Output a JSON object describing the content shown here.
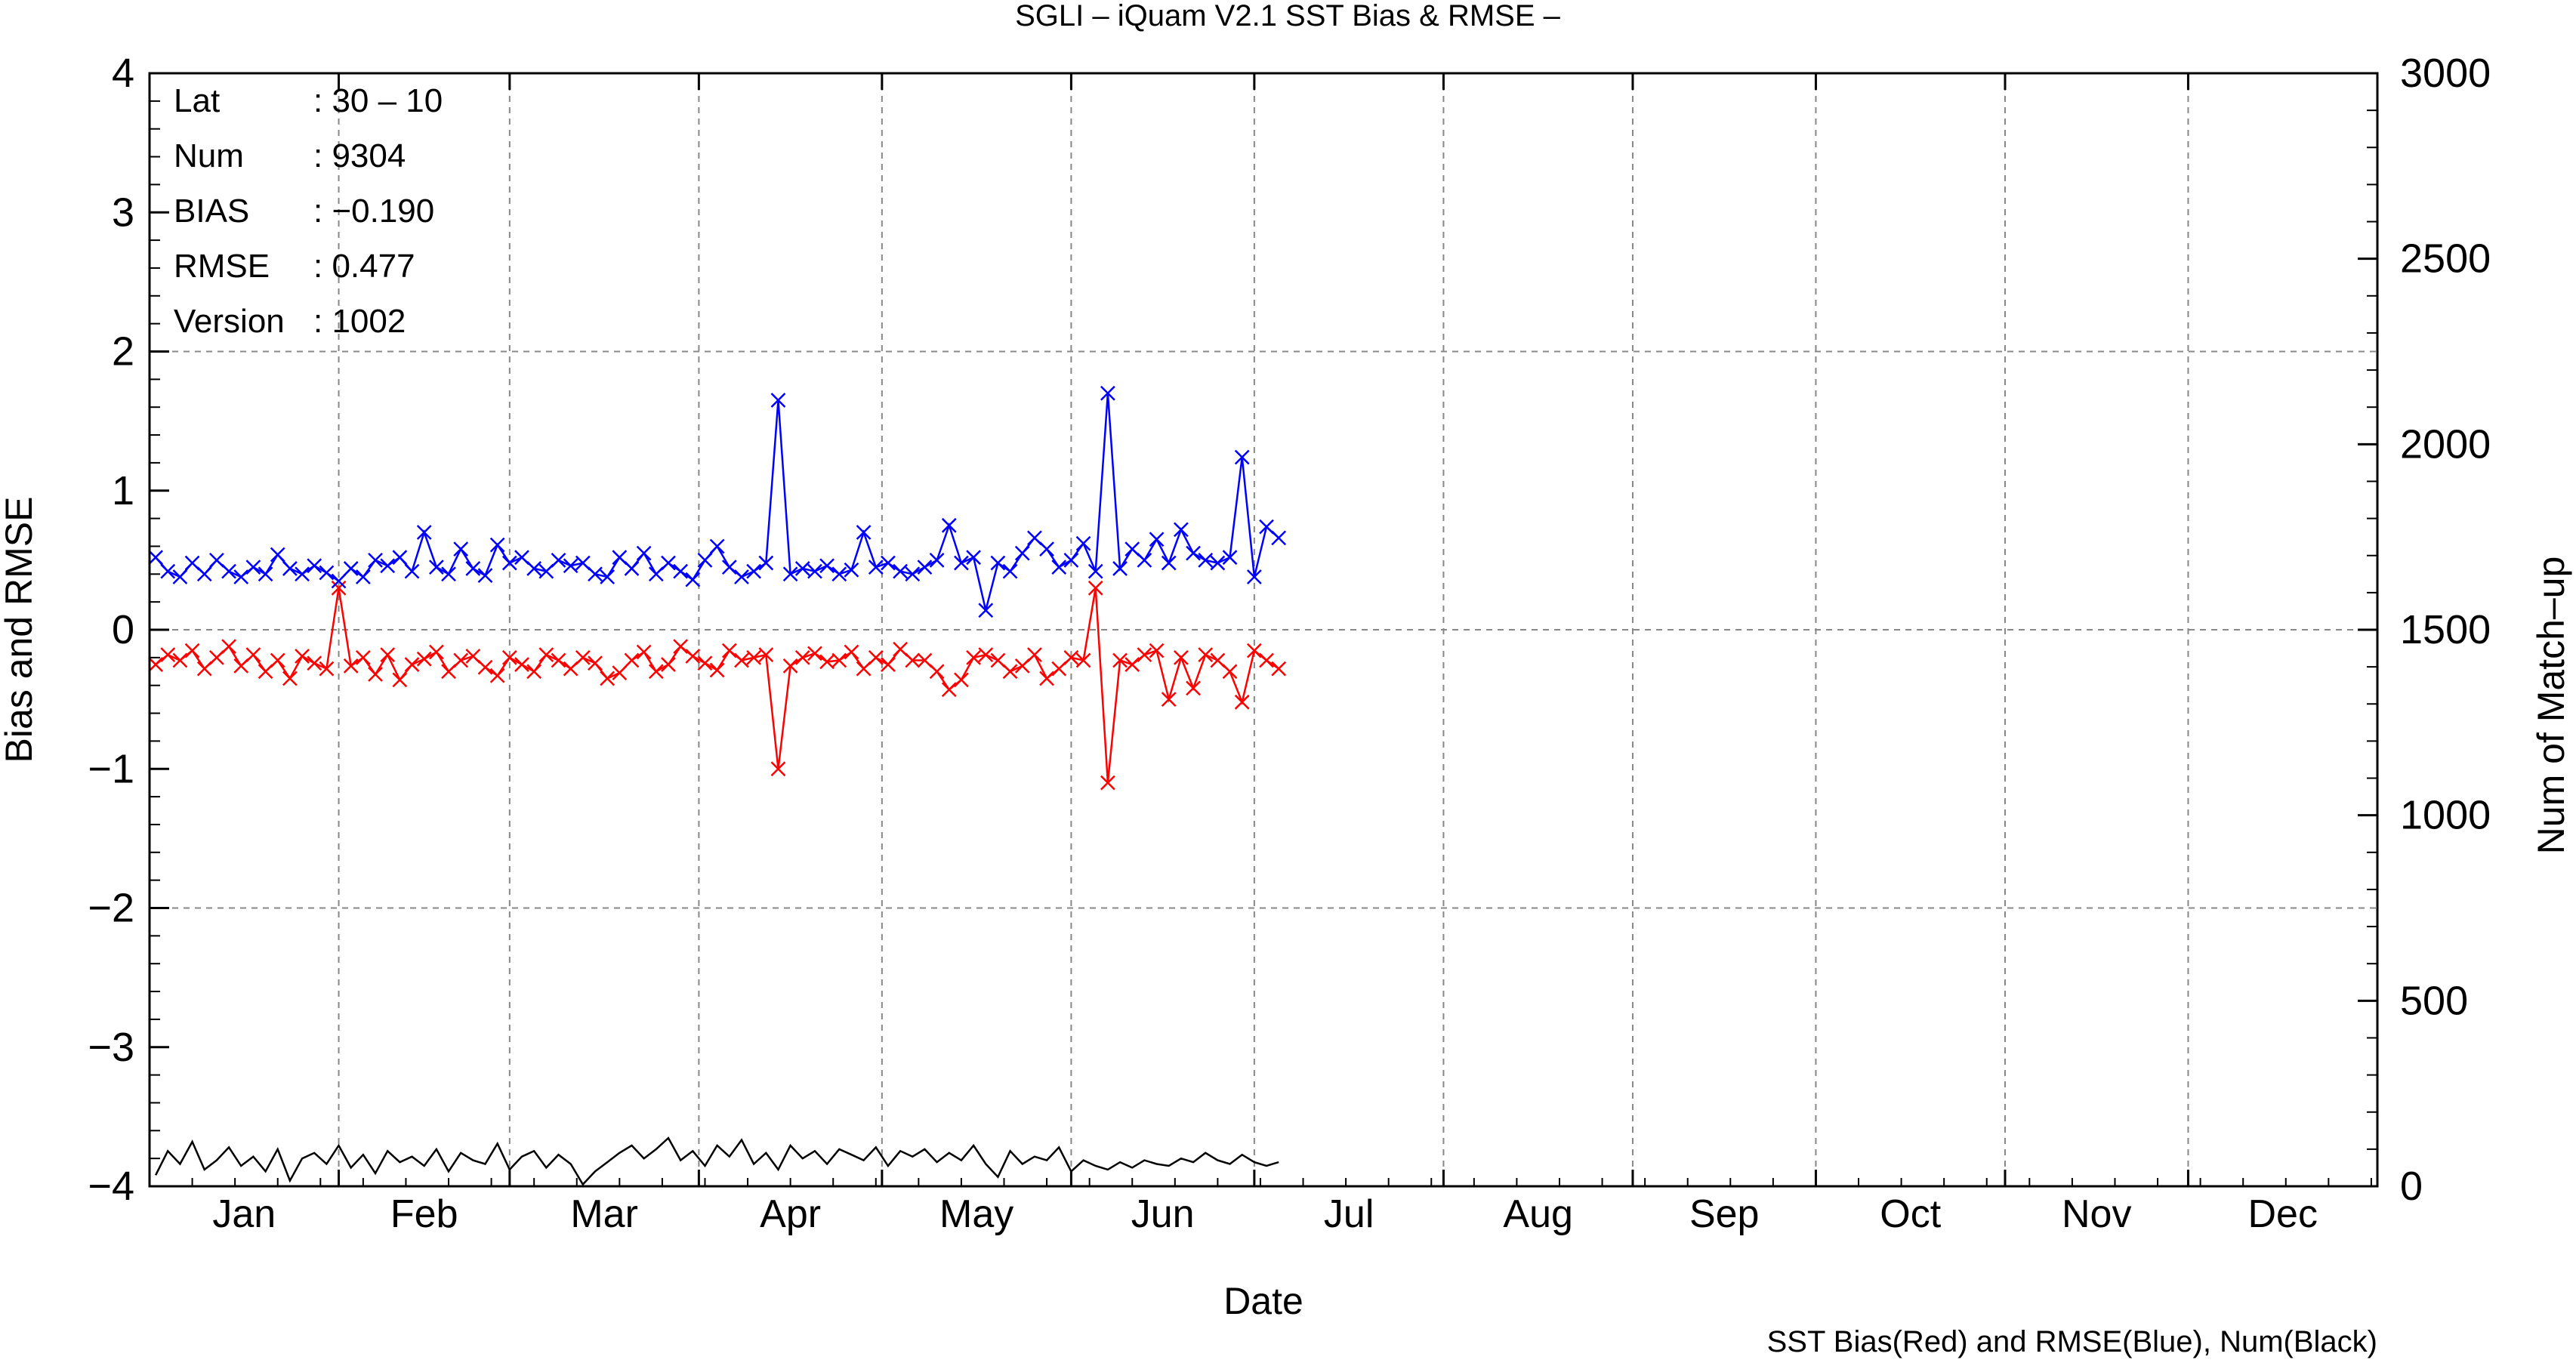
{
  "chart_data": {
    "type": "line",
    "title": "SGLI – iQuam V2.1 SST Bias & RMSE  –",
    "xlabel": "Date",
    "ylabel": "Bias and RMSE",
    "y2label": "Num of Match–up",
    "footer": "SST Bias(Red) and RMSE(Blue), Num(Black)",
    "xlim": [
      0,
      365
    ],
    "ylim": [
      -4,
      4
    ],
    "y2lim": [
      0,
      3000
    ],
    "grid": true,
    "month_labels": [
      "Jan",
      "Feb",
      "Mar",
      "Apr",
      "May",
      "Jun",
      "Jul",
      "Aug",
      "Sep",
      "Oct",
      "Nov",
      "Dec"
    ],
    "yticks": [
      "−4",
      "−3",
      "−2",
      "−1",
      "0",
      "1",
      "2",
      "3",
      "4"
    ],
    "y2ticks": [
      "0",
      "500",
      "1000",
      "1500",
      "2000",
      "2500",
      "3000"
    ],
    "colors": {
      "bias": "#ff0000",
      "rmse": "#0000ff",
      "num": "#000000",
      "grid": "#888888"
    },
    "info": [
      {
        "key": "Lat",
        "value": ": 30 – 10"
      },
      {
        "key": "Num",
        "value": ": 9304"
      },
      {
        "key": "BIAS",
        "value": ": −0.190"
      },
      {
        "key": "RMSE",
        "value": ": 0.477"
      },
      {
        "key": "Version",
        "value": ": 1002"
      }
    ],
    "series": [
      {
        "name": "SST Bias(Red)",
        "axis": "left",
        "marker": "x",
        "x": [
          1,
          3,
          5,
          7,
          9,
          11,
          13,
          15,
          17,
          19,
          21,
          23,
          25,
          27,
          29,
          31,
          33,
          35,
          37,
          39,
          41,
          43,
          45,
          47,
          49,
          51,
          53,
          55,
          57,
          59,
          61,
          63,
          65,
          67,
          69,
          71,
          73,
          75,
          77,
          79,
          81,
          83,
          85,
          87,
          89,
          91,
          93,
          95,
          97,
          99,
          101,
          103,
          105,
          107,
          109,
          111,
          113,
          115,
          117,
          119,
          121,
          123,
          125,
          127,
          129,
          131,
          133,
          135,
          137,
          139,
          141,
          143,
          145,
          147,
          149,
          151,
          153,
          155,
          157,
          159,
          161,
          163,
          165,
          167,
          169,
          171,
          173,
          175,
          177,
          179,
          181,
          183,
          185
        ],
        "y": [
          -0.25,
          -0.18,
          -0.22,
          -0.15,
          -0.28,
          -0.2,
          -0.12,
          -0.26,
          -0.18,
          -0.3,
          -0.22,
          -0.35,
          -0.19,
          -0.24,
          -0.28,
          0.3,
          -0.26,
          -0.2,
          -0.32,
          -0.18,
          -0.36,
          -0.25,
          -0.21,
          -0.16,
          -0.3,
          -0.22,
          -0.19,
          -0.27,
          -0.33,
          -0.2,
          -0.25,
          -0.3,
          -0.18,
          -0.22,
          -0.28,
          -0.2,
          -0.24,
          -0.35,
          -0.31,
          -0.22,
          -0.16,
          -0.3,
          -0.25,
          -0.12,
          -0.19,
          -0.24,
          -0.29,
          -0.15,
          -0.22,
          -0.2,
          -0.18,
          -1.0,
          -0.26,
          -0.2,
          -0.17,
          -0.23,
          -0.22,
          -0.16,
          -0.28,
          -0.2,
          -0.25,
          -0.14,
          -0.22,
          -0.22,
          -0.3,
          -0.43,
          -0.36,
          -0.2,
          -0.18,
          -0.22,
          -0.3,
          -0.26,
          -0.18,
          -0.35,
          -0.28,
          -0.2,
          -0.22,
          0.3,
          -1.1,
          -0.22,
          -0.25,
          -0.18,
          -0.15,
          -0.5,
          -0.2,
          -0.42,
          -0.18,
          -0.22,
          -0.3,
          -0.52,
          -0.15,
          -0.22,
          -0.28
        ],
        "color": "#ff0000"
      },
      {
        "name": "RMSE(Blue)",
        "axis": "left",
        "marker": "x",
        "x": [
          1,
          3,
          5,
          7,
          9,
          11,
          13,
          15,
          17,
          19,
          21,
          23,
          25,
          27,
          29,
          31,
          33,
          35,
          37,
          39,
          41,
          43,
          45,
          47,
          49,
          51,
          53,
          55,
          57,
          59,
          61,
          63,
          65,
          67,
          69,
          71,
          73,
          75,
          77,
          79,
          81,
          83,
          85,
          87,
          89,
          91,
          93,
          95,
          97,
          99,
          101,
          103,
          105,
          107,
          109,
          111,
          113,
          115,
          117,
          119,
          121,
          123,
          125,
          127,
          129,
          131,
          133,
          135,
          137,
          139,
          141,
          143,
          145,
          147,
          149,
          151,
          153,
          155,
          157,
          159,
          161,
          163,
          165,
          167,
          169,
          171,
          173,
          175,
          177,
          179,
          181,
          183,
          185
        ],
        "y": [
          0.52,
          0.42,
          0.38,
          0.48,
          0.4,
          0.5,
          0.42,
          0.38,
          0.45,
          0.4,
          0.54,
          0.44,
          0.4,
          0.46,
          0.41,
          0.35,
          0.44,
          0.38,
          0.5,
          0.46,
          0.52,
          0.42,
          0.7,
          0.45,
          0.4,
          0.58,
          0.44,
          0.39,
          0.61,
          0.48,
          0.52,
          0.44,
          0.42,
          0.5,
          0.46,
          0.48,
          0.4,
          0.38,
          0.52,
          0.44,
          0.55,
          0.4,
          0.48,
          0.42,
          0.36,
          0.5,
          0.6,
          0.45,
          0.38,
          0.42,
          0.48,
          1.65,
          0.4,
          0.44,
          0.42,
          0.46,
          0.4,
          0.43,
          0.7,
          0.45,
          0.48,
          0.42,
          0.4,
          0.45,
          0.5,
          0.75,
          0.48,
          0.52,
          0.14,
          0.48,
          0.42,
          0.55,
          0.66,
          0.58,
          0.45,
          0.5,
          0.62,
          0.42,
          1.7,
          0.44,
          0.58,
          0.5,
          0.65,
          0.48,
          0.72,
          0.55,
          0.5,
          0.48,
          0.52,
          1.24,
          0.38,
          0.74,
          0.66
        ],
        "color": "#0000ff"
      },
      {
        "name": "Num(Black)",
        "axis": "right",
        "x": [
          1,
          3,
          5,
          7,
          9,
          11,
          13,
          15,
          17,
          19,
          21,
          23,
          25,
          27,
          29,
          31,
          33,
          35,
          37,
          39,
          41,
          43,
          45,
          47,
          49,
          51,
          53,
          55,
          57,
          59,
          61,
          63,
          65,
          67,
          69,
          71,
          73,
          75,
          77,
          79,
          81,
          83,
          85,
          87,
          89,
          91,
          93,
          95,
          97,
          99,
          101,
          103,
          105,
          107,
          109,
          111,
          113,
          115,
          117,
          119,
          121,
          123,
          125,
          127,
          129,
          131,
          133,
          135,
          137,
          139,
          141,
          143,
          145,
          147,
          149,
          151,
          153,
          155,
          157,
          159,
          161,
          163,
          165,
          167,
          169,
          171,
          173,
          175,
          177,
          179,
          181,
          183,
          185
        ],
        "y": [
          30,
          95,
          60,
          120,
          45,
          70,
          105,
          55,
          80,
          40,
          100,
          15,
          75,
          90,
          60,
          110,
          50,
          85,
          35,
          95,
          65,
          80,
          55,
          100,
          40,
          90,
          70,
          60,
          115,
          45,
          80,
          95,
          50,
          85,
          60,
          5,
          40,
          65,
          90,
          110,
          75,
          100,
          130,
          70,
          95,
          55,
          110,
          80,
          125,
          60,
          90,
          45,
          110,
          75,
          95,
          60,
          100,
          85,
          70,
          105,
          55,
          95,
          80,
          100,
          65,
          90,
          70,
          110,
          60,
          25,
          95,
          60,
          80,
          70,
          105,
          40,
          70,
          55,
          45,
          65,
          50,
          70,
          60,
          55,
          75,
          65,
          90,
          70,
          60,
          85,
          65,
          55,
          65
        ],
        "color": "#000000"
      }
    ]
  }
}
